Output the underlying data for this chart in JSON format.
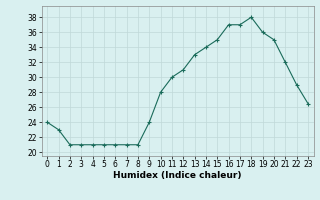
{
  "x": [
    0,
    1,
    2,
    3,
    4,
    5,
    6,
    7,
    8,
    9,
    10,
    11,
    12,
    13,
    14,
    15,
    16,
    17,
    18,
    19,
    20,
    21,
    22,
    23
  ],
  "y": [
    24,
    23,
    21,
    21,
    21,
    21,
    21,
    21,
    21,
    24,
    28,
    30,
    31,
    33,
    34,
    35,
    37,
    37,
    38,
    36,
    35,
    32,
    29,
    26.5
  ],
  "line_color": "#1a6b5a",
  "marker": "+",
  "marker_size": 3,
  "bg_color": "#d9f0f0",
  "grid_color": "#c0d8d8",
  "xlabel": "Humidex (Indice chaleur)",
  "xlim": [
    -0.5,
    23.5
  ],
  "ylim": [
    19.5,
    39.5
  ],
  "yticks": [
    20,
    22,
    24,
    26,
    28,
    30,
    32,
    34,
    36,
    38
  ],
  "xticks": [
    0,
    1,
    2,
    3,
    4,
    5,
    6,
    7,
    8,
    9,
    10,
    11,
    12,
    13,
    14,
    15,
    16,
    17,
    18,
    19,
    20,
    21,
    22,
    23
  ],
  "tick_fontsize": 5.5,
  "xlabel_fontsize": 6.5,
  "line_width": 0.8
}
